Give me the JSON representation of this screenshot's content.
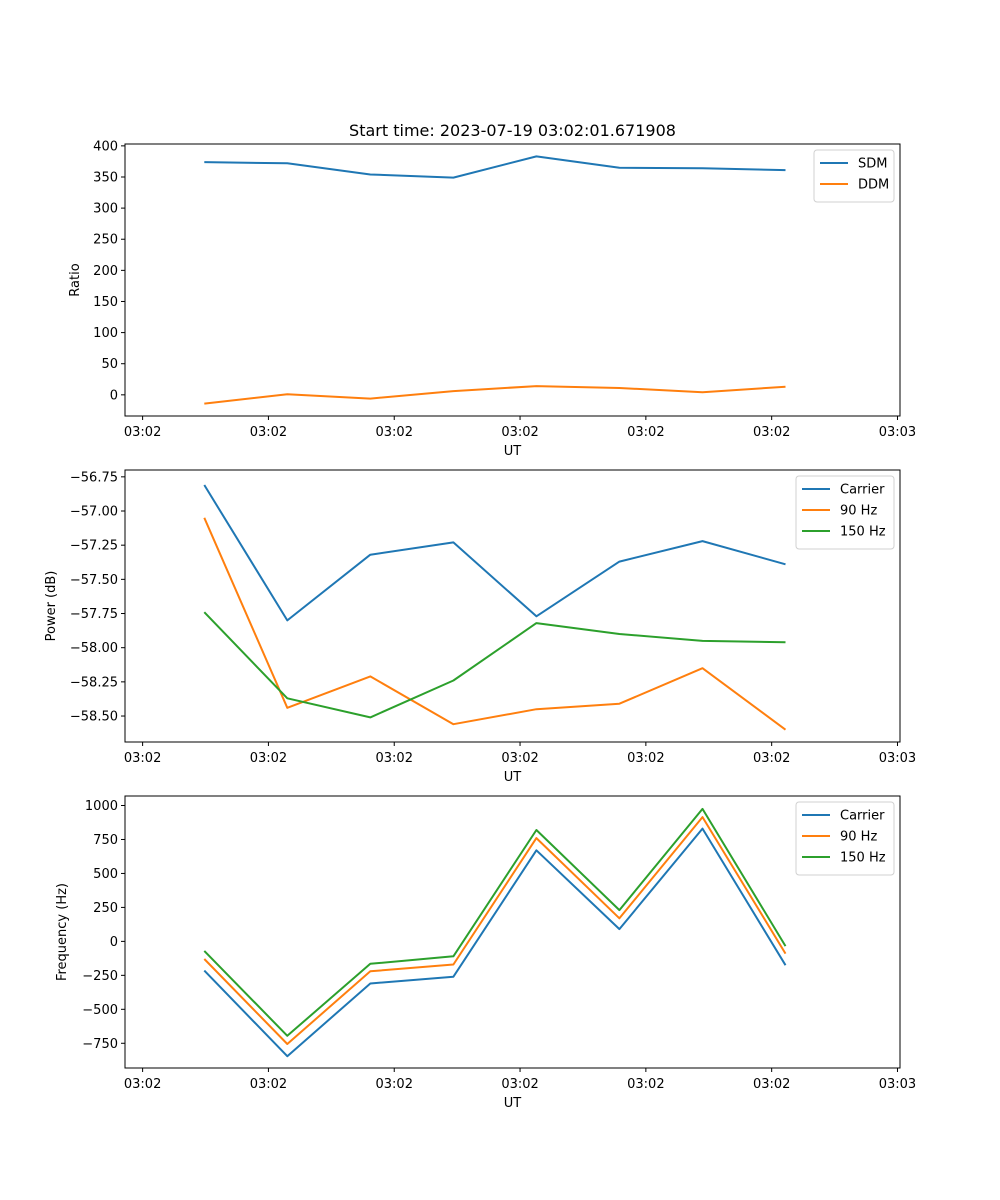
{
  "title": "Start time: 2023-07-19 03:02:01.671908",
  "chart_data": [
    {
      "type": "line",
      "ylabel": "Ratio",
      "xlabel": "UT",
      "x_tick_labels": [
        "03:02",
        "03:02",
        "03:02",
        "03:02",
        "03:02",
        "03:02",
        "03:03"
      ],
      "x_ticks": [
        0,
        1,
        2,
        3,
        4,
        5,
        6
      ],
      "x": [
        0.49,
        1.15,
        1.81,
        2.47,
        3.13,
        3.79,
        4.45,
        5.11
      ],
      "xlim": [
        -0.14,
        6.02
      ],
      "ylim": [
        -34,
        403
      ],
      "yticks": [
        0,
        50,
        100,
        150,
        200,
        250,
        300,
        350,
        400
      ],
      "legend_position": "top-right",
      "series": [
        {
          "name": "SDM",
          "color": "#1f77b4",
          "values": [
            374,
            372,
            354,
            349,
            383,
            365,
            364,
            361
          ]
        },
        {
          "name": "DDM",
          "color": "#ff7f0e",
          "values": [
            -14,
            1,
            -6,
            6,
            14,
            11,
            4,
            13
          ]
        }
      ]
    },
    {
      "type": "line",
      "ylabel": "Power (dB)",
      "xlabel": "UT",
      "x_tick_labels": [
        "03:02",
        "03:02",
        "03:02",
        "03:02",
        "03:02",
        "03:02",
        "03:03"
      ],
      "x_ticks": [
        0,
        1,
        2,
        3,
        4,
        5,
        6
      ],
      "x": [
        0.49,
        1.15,
        1.81,
        2.47,
        3.13,
        3.79,
        4.45,
        5.11
      ],
      "xlim": [
        -0.14,
        6.02
      ],
      "ylim": [
        -58.69,
        -56.7
      ],
      "yticks": [
        -58.5,
        -58.25,
        -58.0,
        -57.75,
        -57.5,
        -57.25,
        -57.0,
        -56.75
      ],
      "ytick_labels": [
        "−58.50",
        "−58.25",
        "−58.00",
        "−57.75",
        "−57.50",
        "−57.25",
        "−57.00",
        "−56.75"
      ],
      "legend_position": "top-right",
      "series": [
        {
          "name": "Carrier",
          "color": "#1f77b4",
          "values": [
            -56.81,
            -57.8,
            -57.32,
            -57.23,
            -57.77,
            -57.37,
            -57.22,
            -57.39
          ]
        },
        {
          "name": "90 Hz",
          "color": "#ff7f0e",
          "values": [
            -57.05,
            -58.44,
            -58.21,
            -58.56,
            -58.45,
            -58.41,
            -58.15,
            -58.6
          ]
        },
        {
          "name": "150 Hz",
          "color": "#2ca02c",
          "values": [
            -57.74,
            -58.37,
            -58.51,
            -58.24,
            -57.82,
            -57.9,
            -57.95,
            -57.96
          ]
        }
      ]
    },
    {
      "type": "line",
      "ylabel": "Frequency (Hz)",
      "xlabel": "UT",
      "x_tick_labels": [
        "03:02",
        "03:02",
        "03:02",
        "03:02",
        "03:02",
        "03:02",
        "03:03"
      ],
      "x_ticks": [
        0,
        1,
        2,
        3,
        4,
        5,
        6
      ],
      "x": [
        0.49,
        1.15,
        1.81,
        2.47,
        3.13,
        3.79,
        4.45,
        5.11
      ],
      "xlim": [
        -0.14,
        6.02
      ],
      "ylim": [
        -932,
        1070
      ],
      "yticks": [
        -750,
        -500,
        -250,
        0,
        250,
        500,
        750,
        1000
      ],
      "ytick_labels": [
        "−750",
        "−500",
        "−250",
        "0",
        "250",
        "500",
        "750",
        "1000"
      ],
      "legend_position": "top-right",
      "series": [
        {
          "name": "Carrier",
          "color": "#1f77b4",
          "values": [
            -215,
            -845,
            -310,
            -260,
            670,
            90,
            830,
            -175
          ]
        },
        {
          "name": "90 Hz",
          "color": "#ff7f0e",
          "values": [
            -130,
            -755,
            -220,
            -170,
            760,
            170,
            915,
            -90
          ]
        },
        {
          "name": "150 Hz",
          "color": "#2ca02c",
          "values": [
            -70,
            -695,
            -165,
            -110,
            820,
            230,
            975,
            -35
          ]
        }
      ]
    }
  ]
}
